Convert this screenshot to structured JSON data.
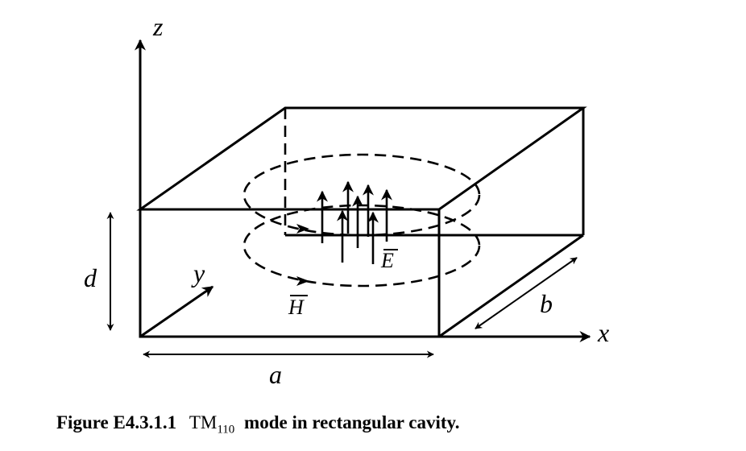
{
  "caption": {
    "figure_label": "Figure E4.3.1.1",
    "mode_prefix": "TM",
    "mode_subscript": "110",
    "text": "mode in rectangular cavity."
  },
  "axes": {
    "x": "x",
    "y": "y",
    "z": "z"
  },
  "dimensions": {
    "a": "a",
    "b": "b",
    "d": "d"
  },
  "fields": {
    "electric": "E",
    "magnetic": "H"
  }
}
